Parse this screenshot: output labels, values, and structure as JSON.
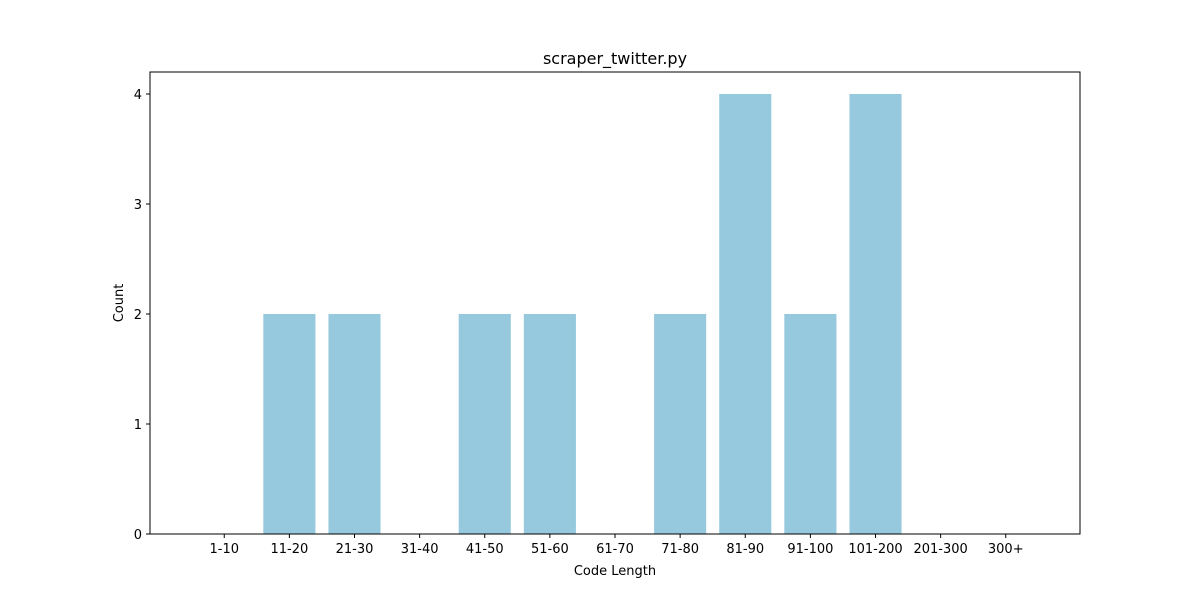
{
  "chart_data": {
    "type": "bar",
    "title": "scraper_twitter.py",
    "xlabel": "Code Length",
    "ylabel": "Count",
    "categories": [
      "1-10",
      "11-20",
      "21-30",
      "31-40",
      "41-50",
      "51-60",
      "61-70",
      "71-80",
      "81-90",
      "91-100",
      "101-200",
      "201-300",
      "300+"
    ],
    "values": [
      0,
      2,
      2,
      0,
      2,
      2,
      0,
      2,
      4,
      2,
      4,
      0,
      0
    ],
    "yticks": [
      0,
      1,
      2,
      3,
      4
    ],
    "ylim": [
      0,
      4.2
    ],
    "grid": false,
    "colors": {
      "bar": "#96c9dd",
      "axis": "#000000"
    }
  }
}
